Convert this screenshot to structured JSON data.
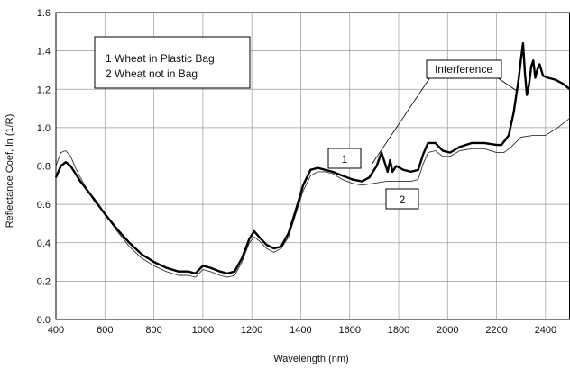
{
  "chart_data": {
    "type": "line",
    "title": "",
    "xlabel": "Wavelength (nm)",
    "ylabel": "Reflectance Coef, ln (1/R)",
    "xlim": [
      400,
      2500
    ],
    "ylim": [
      0.0,
      1.6
    ],
    "grid": true,
    "x_ticks": [
      400,
      600,
      800,
      1000,
      1200,
      1400,
      1600,
      1800,
      2000,
      2200,
      2400
    ],
    "x_tick_labels": [
      "400",
      "600",
      "800",
      "1000",
      "1200",
      "1400",
      "1600",
      "1800",
      "2000",
      "2200",
      "2400"
    ],
    "y_ticks": [
      0.0,
      0.2,
      0.4,
      0.6,
      0.8,
      1.0,
      1.2,
      1.4,
      1.6
    ],
    "y_tick_labels": [
      "0.0",
      "0.2",
      "0.4",
      "0.6",
      "0.8",
      "1.0",
      "1.2",
      "1.4",
      "1.6"
    ],
    "legend": {
      "placement": "top-left",
      "entries": [
        "1  Wheat in Plastic Bag",
        "2  Wheat not in Bag"
      ]
    },
    "annotations": {
      "interference": "Interference",
      "label_1": "1",
      "label_2": "2"
    },
    "series": [
      {
        "label": "1",
        "color": "#000000",
        "points": [
          [
            400,
            0.74
          ],
          [
            420,
            0.8
          ],
          [
            440,
            0.82
          ],
          [
            460,
            0.8
          ],
          [
            480,
            0.76
          ],
          [
            500,
            0.72
          ],
          [
            530,
            0.67
          ],
          [
            560,
            0.62
          ],
          [
            600,
            0.55
          ],
          [
            650,
            0.47
          ],
          [
            700,
            0.4
          ],
          [
            750,
            0.34
          ],
          [
            800,
            0.3
          ],
          [
            850,
            0.27
          ],
          [
            900,
            0.25
          ],
          [
            940,
            0.25
          ],
          [
            970,
            0.24
          ],
          [
            1000,
            0.28
          ],
          [
            1030,
            0.27
          ],
          [
            1070,
            0.25
          ],
          [
            1100,
            0.24
          ],
          [
            1130,
            0.25
          ],
          [
            1160,
            0.32
          ],
          [
            1190,
            0.42
          ],
          [
            1210,
            0.46
          ],
          [
            1230,
            0.43
          ],
          [
            1260,
            0.39
          ],
          [
            1290,
            0.37
          ],
          [
            1320,
            0.38
          ],
          [
            1350,
            0.45
          ],
          [
            1380,
            0.57
          ],
          [
            1410,
            0.7
          ],
          [
            1440,
            0.78
          ],
          [
            1470,
            0.79
          ],
          [
            1500,
            0.78
          ],
          [
            1530,
            0.77
          ],
          [
            1570,
            0.75
          ],
          [
            1610,
            0.73
          ],
          [
            1650,
            0.72
          ],
          [
            1680,
            0.74
          ],
          [
            1710,
            0.8
          ],
          [
            1730,
            0.87
          ],
          [
            1745,
            0.81
          ],
          [
            1755,
            0.77
          ],
          [
            1765,
            0.83
          ],
          [
            1775,
            0.77
          ],
          [
            1790,
            0.8
          ],
          [
            1820,
            0.78
          ],
          [
            1850,
            0.77
          ],
          [
            1880,
            0.78
          ],
          [
            1900,
            0.86
          ],
          [
            1920,
            0.92
          ],
          [
            1950,
            0.92
          ],
          [
            1980,
            0.88
          ],
          [
            2010,
            0.87
          ],
          [
            2050,
            0.9
          ],
          [
            2100,
            0.92
          ],
          [
            2150,
            0.92
          ],
          [
            2200,
            0.91
          ],
          [
            2220,
            0.91
          ],
          [
            2250,
            0.96
          ],
          [
            2270,
            1.08
          ],
          [
            2290,
            1.25
          ],
          [
            2300,
            1.36
          ],
          [
            2308,
            1.44
          ],
          [
            2316,
            1.28
          ],
          [
            2324,
            1.17
          ],
          [
            2332,
            1.22
          ],
          [
            2342,
            1.32
          ],
          [
            2350,
            1.35
          ],
          [
            2358,
            1.26
          ],
          [
            2366,
            1.3
          ],
          [
            2376,
            1.33
          ],
          [
            2390,
            1.27
          ],
          [
            2410,
            1.26
          ],
          [
            2440,
            1.25
          ],
          [
            2470,
            1.23
          ],
          [
            2500,
            1.2
          ]
        ]
      },
      {
        "label": "2",
        "color": "#333333",
        "points": [
          [
            400,
            0.8
          ],
          [
            420,
            0.87
          ],
          [
            440,
            0.88
          ],
          [
            460,
            0.85
          ],
          [
            480,
            0.79
          ],
          [
            500,
            0.74
          ],
          [
            530,
            0.67
          ],
          [
            560,
            0.61
          ],
          [
            600,
            0.55
          ],
          [
            650,
            0.46
          ],
          [
            700,
            0.38
          ],
          [
            750,
            0.32
          ],
          [
            800,
            0.28
          ],
          [
            850,
            0.25
          ],
          [
            900,
            0.23
          ],
          [
            940,
            0.23
          ],
          [
            970,
            0.22
          ],
          [
            1000,
            0.26
          ],
          [
            1030,
            0.25
          ],
          [
            1070,
            0.23
          ],
          [
            1100,
            0.22
          ],
          [
            1130,
            0.23
          ],
          [
            1160,
            0.3
          ],
          [
            1190,
            0.4
          ],
          [
            1210,
            0.43
          ],
          [
            1230,
            0.41
          ],
          [
            1260,
            0.37
          ],
          [
            1290,
            0.35
          ],
          [
            1320,
            0.37
          ],
          [
            1350,
            0.43
          ],
          [
            1380,
            0.55
          ],
          [
            1410,
            0.67
          ],
          [
            1440,
            0.75
          ],
          [
            1470,
            0.77
          ],
          [
            1500,
            0.77
          ],
          [
            1530,
            0.76
          ],
          [
            1570,
            0.73
          ],
          [
            1610,
            0.71
          ],
          [
            1650,
            0.7
          ],
          [
            1700,
            0.71
          ],
          [
            1750,
            0.72
          ],
          [
            1800,
            0.72
          ],
          [
            1850,
            0.72
          ],
          [
            1880,
            0.73
          ],
          [
            1900,
            0.81
          ],
          [
            1920,
            0.87
          ],
          [
            1950,
            0.88
          ],
          [
            1980,
            0.85
          ],
          [
            2010,
            0.85
          ],
          [
            2050,
            0.88
          ],
          [
            2100,
            0.89
          ],
          [
            2150,
            0.89
          ],
          [
            2200,
            0.87
          ],
          [
            2230,
            0.87
          ],
          [
            2260,
            0.9
          ],
          [
            2300,
            0.95
          ],
          [
            2350,
            0.96
          ],
          [
            2400,
            0.96
          ],
          [
            2450,
            1.0
          ],
          [
            2500,
            1.05
          ]
        ]
      }
    ]
  }
}
